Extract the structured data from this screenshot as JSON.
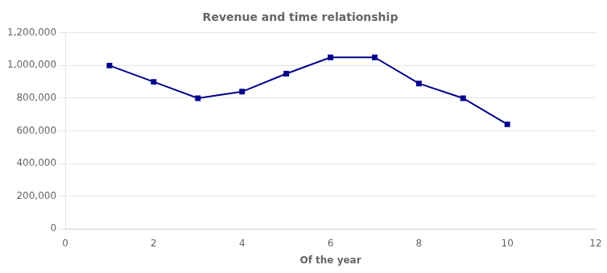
{
  "chart_data": {
    "type": "line",
    "title": "Revenue and time relationship",
    "xlabel": "Of the year",
    "x": [
      1,
      2,
      3,
      4,
      5,
      6,
      7,
      8,
      9,
      10
    ],
    "values": [
      1000000,
      900000,
      800000,
      840000,
      950000,
      1050000,
      1050000,
      890000,
      800000,
      640000
    ],
    "color": "#00008B",
    "marker": "square",
    "xlim": [
      0,
      12
    ],
    "xticks": [
      0,
      2,
      4,
      6,
      8,
      10,
      12
    ],
    "ylim": [
      0,
      1200000
    ],
    "yticks": [
      0,
      {
        "value": 200000,
        "label": "200,000"
      },
      {
        "value": 400000,
        "label": "400,000"
      },
      {
        "value": 600000,
        "label": "600,000"
      },
      {
        "value": 800000,
        "label": "800,000"
      },
      {
        "value": 1000000,
        "label": "1,000,000"
      },
      {
        "value": 1200000,
        "label": "1,200,000"
      }
    ],
    "grid": "y"
  }
}
